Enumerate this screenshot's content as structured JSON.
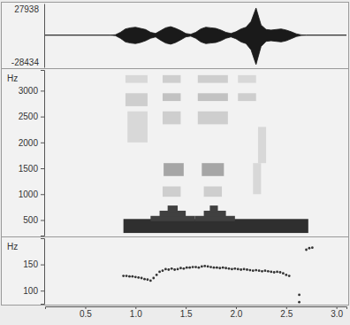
{
  "chart_data": [
    {
      "type": "area",
      "xlim": [
        0.1,
        3.1
      ],
      "ylim": [
        -28434,
        27938
      ],
      "yticks": [
        27938,
        -28434
      ],
      "color": "#1a1a1a",
      "x": [
        0.1,
        0.75,
        0.8,
        0.85,
        0.9,
        0.95,
        1.0,
        1.05,
        1.1,
        1.15,
        1.2,
        1.25,
        1.3,
        1.35,
        1.4,
        1.45,
        1.5,
        1.55,
        1.6,
        1.65,
        1.7,
        1.75,
        1.8,
        1.85,
        1.9,
        1.95,
        2.0,
        2.05,
        2.1,
        2.15,
        2.2,
        2.25,
        2.3,
        2.35,
        2.4,
        2.45,
        2.5,
        2.55,
        2.6,
        2.65,
        2.7,
        3.1
      ],
      "series": [
        {
          "values": [
            0,
            0,
            300,
            2500,
            5500,
            6500,
            7000,
            6000,
            5000,
            2500,
            1500,
            4000,
            6500,
            7500,
            6000,
            4000,
            1500,
            800,
            2500,
            5500,
            7000,
            6500,
            6000,
            4500,
            2500,
            1500,
            3000,
            5500,
            7000,
            12000,
            24000,
            9000,
            5000,
            4500,
            5000,
            5500,
            4500,
            3000,
            1200,
            200,
            0,
            0
          ]
        },
        {
          "values": [
            0,
            0,
            -400,
            -2800,
            -6000,
            -7000,
            -7500,
            -6500,
            -5000,
            -2800,
            -1600,
            -4500,
            -7000,
            -8000,
            -6500,
            -4200,
            -1600,
            -900,
            -2800,
            -6000,
            -7500,
            -7000,
            -6500,
            -5000,
            -2800,
            -1600,
            -3200,
            -6000,
            -7500,
            -13000,
            -26000,
            -10000,
            -5500,
            -5000,
            -5500,
            -6000,
            -5000,
            -3200,
            -1300,
            -300,
            0,
            0
          ]
        }
      ]
    },
    {
      "type": "heatmap",
      "y_label": "Hz",
      "xlim": [
        0.1,
        3.1
      ],
      "ylim": [
        200,
        3400
      ],
      "yticks": [
        500,
        1000,
        1500,
        2000,
        2500,
        3000
      ],
      "cells": [
        [
          0.88,
          2.72,
          250,
          520,
          0.85
        ],
        [
          1.15,
          1.59,
          480,
          580,
          0.8
        ],
        [
          1.24,
          1.5,
          560,
          680,
          0.8
        ],
        [
          1.32,
          1.42,
          660,
          780,
          0.8
        ],
        [
          1.59,
          1.99,
          480,
          580,
          0.8
        ],
        [
          1.68,
          1.9,
          560,
          680,
          0.8
        ],
        [
          1.74,
          1.82,
          660,
          780,
          0.8
        ],
        [
          1.28,
          1.48,
          1350,
          1600,
          0.45
        ],
        [
          1.66,
          1.88,
          1350,
          1600,
          0.45
        ],
        [
          1.27,
          1.45,
          950,
          1150,
          0.3
        ],
        [
          1.68,
          1.86,
          950,
          1150,
          0.3
        ],
        [
          0.92,
          1.12,
          2000,
          2600,
          0.25
        ],
        [
          0.9,
          1.12,
          2700,
          2950,
          0.3
        ],
        [
          0.9,
          1.12,
          3150,
          3300,
          0.25
        ],
        [
          1.27,
          1.45,
          2350,
          2600,
          0.3
        ],
        [
          1.27,
          1.45,
          2800,
          2950,
          0.35
        ],
        [
          1.27,
          1.45,
          3150,
          3300,
          0.3
        ],
        [
          1.62,
          1.92,
          2350,
          2600,
          0.3
        ],
        [
          1.62,
          1.92,
          2800,
          2950,
          0.35
        ],
        [
          1.62,
          1.92,
          3150,
          3300,
          0.3
        ],
        [
          2.02,
          2.2,
          2800,
          2950,
          0.3
        ],
        [
          2.02,
          2.2,
          3150,
          3300,
          0.25
        ],
        [
          2.17,
          2.25,
          1000,
          1600,
          0.25
        ],
        [
          2.22,
          2.3,
          1600,
          2300,
          0.25
        ]
      ]
    },
    {
      "type": "scatter",
      "y_label": "Hz",
      "marker": "circle",
      "color": "#333333",
      "xlim": [
        0.1,
        3.1
      ],
      "ylim": [
        75,
        200
      ],
      "yticks": [
        100,
        150
      ],
      "xticks": [
        {
          "value": 0.5,
          "label": "0.5"
        },
        {
          "value": 1,
          "label": "1.0"
        },
        {
          "value": 1.5,
          "label": "1.5"
        },
        {
          "value": 2,
          "label": "2.0"
        },
        {
          "value": 2.5,
          "label": "2.5"
        },
        {
          "value": 3,
          "label": "3.0"
        }
      ],
      "x": [
        0.88,
        0.91,
        0.94,
        0.97,
        1.0,
        1.03,
        1.06,
        1.09,
        1.12,
        1.15,
        1.18,
        1.21,
        1.24,
        1.27,
        1.3,
        1.33,
        1.36,
        1.39,
        1.42,
        1.45,
        1.48,
        1.51,
        1.54,
        1.57,
        1.6,
        1.63,
        1.66,
        1.69,
        1.72,
        1.75,
        1.78,
        1.81,
        1.84,
        1.87,
        1.9,
        1.93,
        1.96,
        1.99,
        2.02,
        2.05,
        2.08,
        2.11,
        2.14,
        2.17,
        2.2,
        2.23,
        2.26,
        2.29,
        2.32,
        2.35,
        2.38,
        2.41,
        2.44,
        2.47,
        2.5,
        2.53,
        2.63,
        2.63,
        2.7,
        2.73,
        2.76
      ],
      "values": [
        128,
        128,
        127,
        127,
        126,
        125,
        124,
        122,
        121,
        119,
        124,
        130,
        136,
        138,
        141,
        140,
        142,
        140,
        141,
        143,
        142,
        144,
        144,
        145,
        145,
        144,
        146,
        147,
        146,
        145,
        144,
        144,
        143,
        144,
        143,
        142,
        141,
        142,
        141,
        140,
        141,
        140,
        139,
        138,
        139,
        138,
        137,
        138,
        137,
        136,
        135,
        136,
        135,
        133,
        130,
        128,
        92,
        78,
        178,
        181,
        182
      ]
    }
  ]
}
